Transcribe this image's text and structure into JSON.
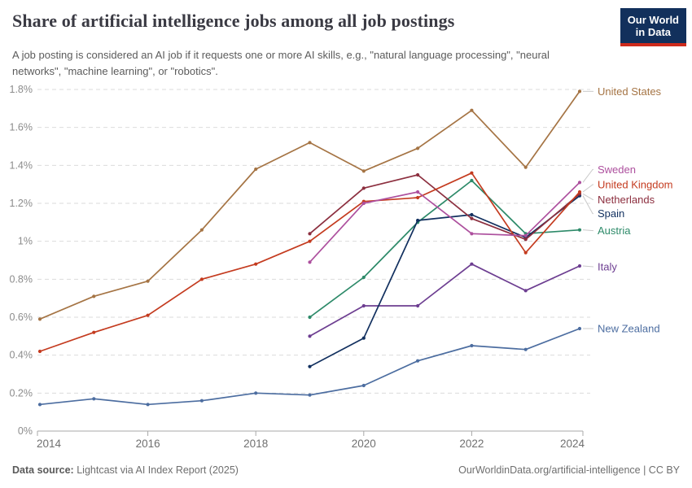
{
  "header": {
    "title": "Share of artificial intelligence jobs among all job postings",
    "subtitle": "A job posting is considered an AI job if it requests one or more AI skills, e.g., \"natural language processing\", \"neural networks\", \"machine learning\", or \"robotics\"."
  },
  "logo": {
    "line1": "Our World",
    "line2": "in Data"
  },
  "footer": {
    "source_label": "Data source:",
    "source_value": "Lightcast via AI Index Report (2025)",
    "credit": "OurWorldinData.org/artificial-intelligence | CC BY"
  },
  "colors": {
    "background": "#FFFFFF",
    "gridline": "#DBDBDB",
    "axis": "#A8A8A8",
    "y_tick_label": "#8C8C8C",
    "x_tick_label": "#707070",
    "connector": "#C9C9C9",
    "logo_bg": "#12305C",
    "logo_accent": "#CE2A1C"
  },
  "chart_data": {
    "type": "line",
    "title": "Share of artificial intelligence jobs among all job postings",
    "xlabel": "",
    "ylabel": "",
    "unit": "%",
    "x": [
      2014,
      2015,
      2016,
      2017,
      2018,
      2019,
      2020,
      2021,
      2022,
      2023,
      2024
    ],
    "x_ticks": [
      2014,
      2016,
      2018,
      2020,
      2022,
      2024
    ],
    "y_ticks": {
      "values": [
        0,
        0.2,
        0.4,
        0.6,
        0.8,
        1.0,
        1.2,
        1.4,
        1.6,
        1.8
      ],
      "labels": [
        "0%",
        "0.2%",
        "0.4%",
        "0.6%",
        "0.8%",
        "1%",
        "1.2%",
        "1.4%",
        "1.6%",
        "1.8%"
      ]
    },
    "ylim": [
      0,
      1.8
    ],
    "grid": "dashed-horizontal",
    "legend_position": "labels-at-line-end-right",
    "series": [
      {
        "name": "United States",
        "color": "#A57444",
        "label_dy": 0,
        "values": [
          0.59,
          0.71,
          0.79,
          1.06,
          1.38,
          1.52,
          1.37,
          1.49,
          1.69,
          1.39,
          1.79
        ]
      },
      {
        "name": "Sweden",
        "color": "#AD509E",
        "label_dy": -16,
        "values": [
          null,
          null,
          null,
          null,
          null,
          0.89,
          1.2,
          1.26,
          1.04,
          1.03,
          1.31
        ]
      },
      {
        "name": "United Kingdom",
        "color": "#C43B1F",
        "label_dy": -9,
        "values": [
          0.42,
          0.52,
          0.61,
          0.8,
          0.88,
          1.0,
          1.21,
          1.23,
          1.36,
          0.94,
          1.26
        ]
      },
      {
        "name": "Netherlands",
        "color": "#8C2F3F",
        "label_dy": 7,
        "values": [
          null,
          null,
          null,
          null,
          null,
          1.04,
          1.28,
          1.35,
          1.12,
          1.01,
          1.25
        ]
      },
      {
        "name": "Spain",
        "color": "#12305F",
        "label_dy": 22,
        "values": [
          null,
          null,
          null,
          null,
          null,
          0.34,
          0.49,
          1.11,
          1.14,
          1.02,
          1.24
        ]
      },
      {
        "name": "Austria",
        "color": "#2D8A69",
        "label_dy": 1,
        "values": [
          null,
          null,
          null,
          null,
          null,
          0.6,
          0.81,
          1.1,
          1.32,
          1.04,
          1.06
        ]
      },
      {
        "name": "Italy",
        "color": "#6D3E91",
        "label_dy": 1,
        "values": [
          null,
          null,
          null,
          null,
          null,
          0.5,
          0.66,
          0.66,
          0.88,
          0.74,
          0.87
        ]
      },
      {
        "name": "New Zealand",
        "color": "#4C6DA0",
        "label_dy": 0,
        "values": [
          0.14,
          0.17,
          0.14,
          0.16,
          0.2,
          0.19,
          0.24,
          0.37,
          0.45,
          0.43,
          0.54
        ]
      }
    ]
  }
}
